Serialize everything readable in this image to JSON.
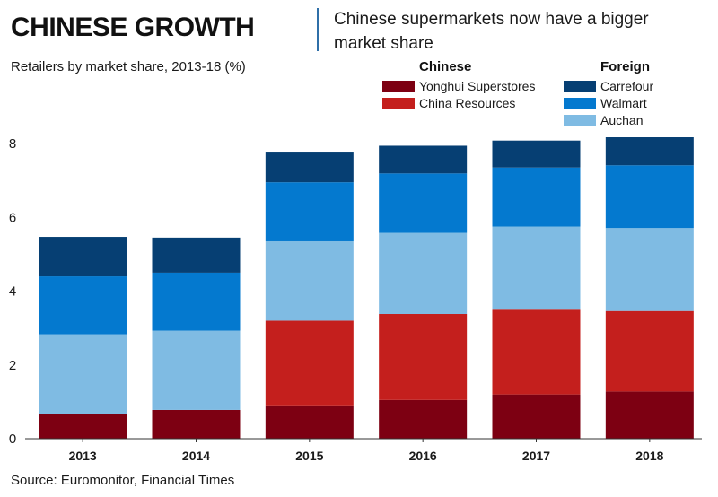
{
  "header": {
    "title": "CHINESE GROWTH",
    "subtitle": "Chinese supermarkets now have a bigger market share"
  },
  "axis_caption": "Retailers by market share, 2013-18 (%)",
  "source": "Source: Euromonitor, Financial Times",
  "legend": {
    "chinese_title": "Chinese",
    "foreign_title": "Foreign"
  },
  "chart_data": {
    "type": "bar",
    "stacked": true,
    "categories": [
      "2013",
      "2014",
      "2015",
      "2016",
      "2017",
      "2018"
    ],
    "ylim": [
      0,
      8
    ],
    "yticks": [
      0,
      2,
      4,
      6,
      8
    ],
    "grid": false,
    "series": [
      {
        "name": "Yonghui Superstores",
        "group": "Chinese",
        "color": "#7d0012",
        "values": [
          0.68,
          0.78,
          0.88,
          1.05,
          1.2,
          1.28
        ]
      },
      {
        "name": "China Resources",
        "group": "Chinese",
        "color": "#c41f1d",
        "values": [
          0,
          0,
          2.32,
          2.33,
          2.32,
          2.18
        ]
      },
      {
        "name": "Auchan",
        "group": "Foreign",
        "color": "#7fbbe3",
        "values": [
          2.15,
          2.15,
          2.15,
          2.2,
          2.23,
          2.25
        ]
      },
      {
        "name": "Walmart",
        "group": "Foreign",
        "color": "#0479cf",
        "values": [
          1.57,
          1.57,
          1.6,
          1.61,
          1.6,
          1.7
        ]
      },
      {
        "name": "Carrefour",
        "group": "Foreign",
        "color": "#063f73",
        "values": [
          1.07,
          0.95,
          0.83,
          0.75,
          0.73,
          0.76
        ]
      }
    ]
  }
}
